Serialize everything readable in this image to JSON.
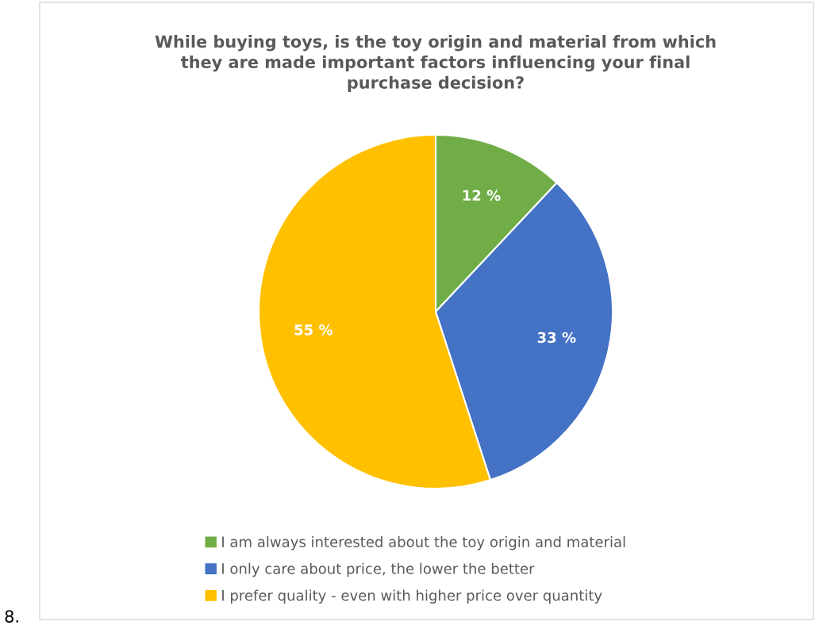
{
  "chart_data": {
    "type": "pie",
    "title": "While buying toys, is the toy origin and material from which they are made important factors influencing your final purchase decision?",
    "categories": [
      "I am always interested about the toy origin and material",
      "I only care about price, the lower the better",
      "I prefer quality - even with higher price over quantity"
    ],
    "values": [
      12,
      33,
      55
    ],
    "colors": [
      "#70ad47",
      "#4472c4",
      "#ffc000"
    ],
    "value_labels": [
      "12 %",
      "33 %",
      "55 %"
    ],
    "legend": "bottom",
    "annotations": [
      "8."
    ]
  }
}
